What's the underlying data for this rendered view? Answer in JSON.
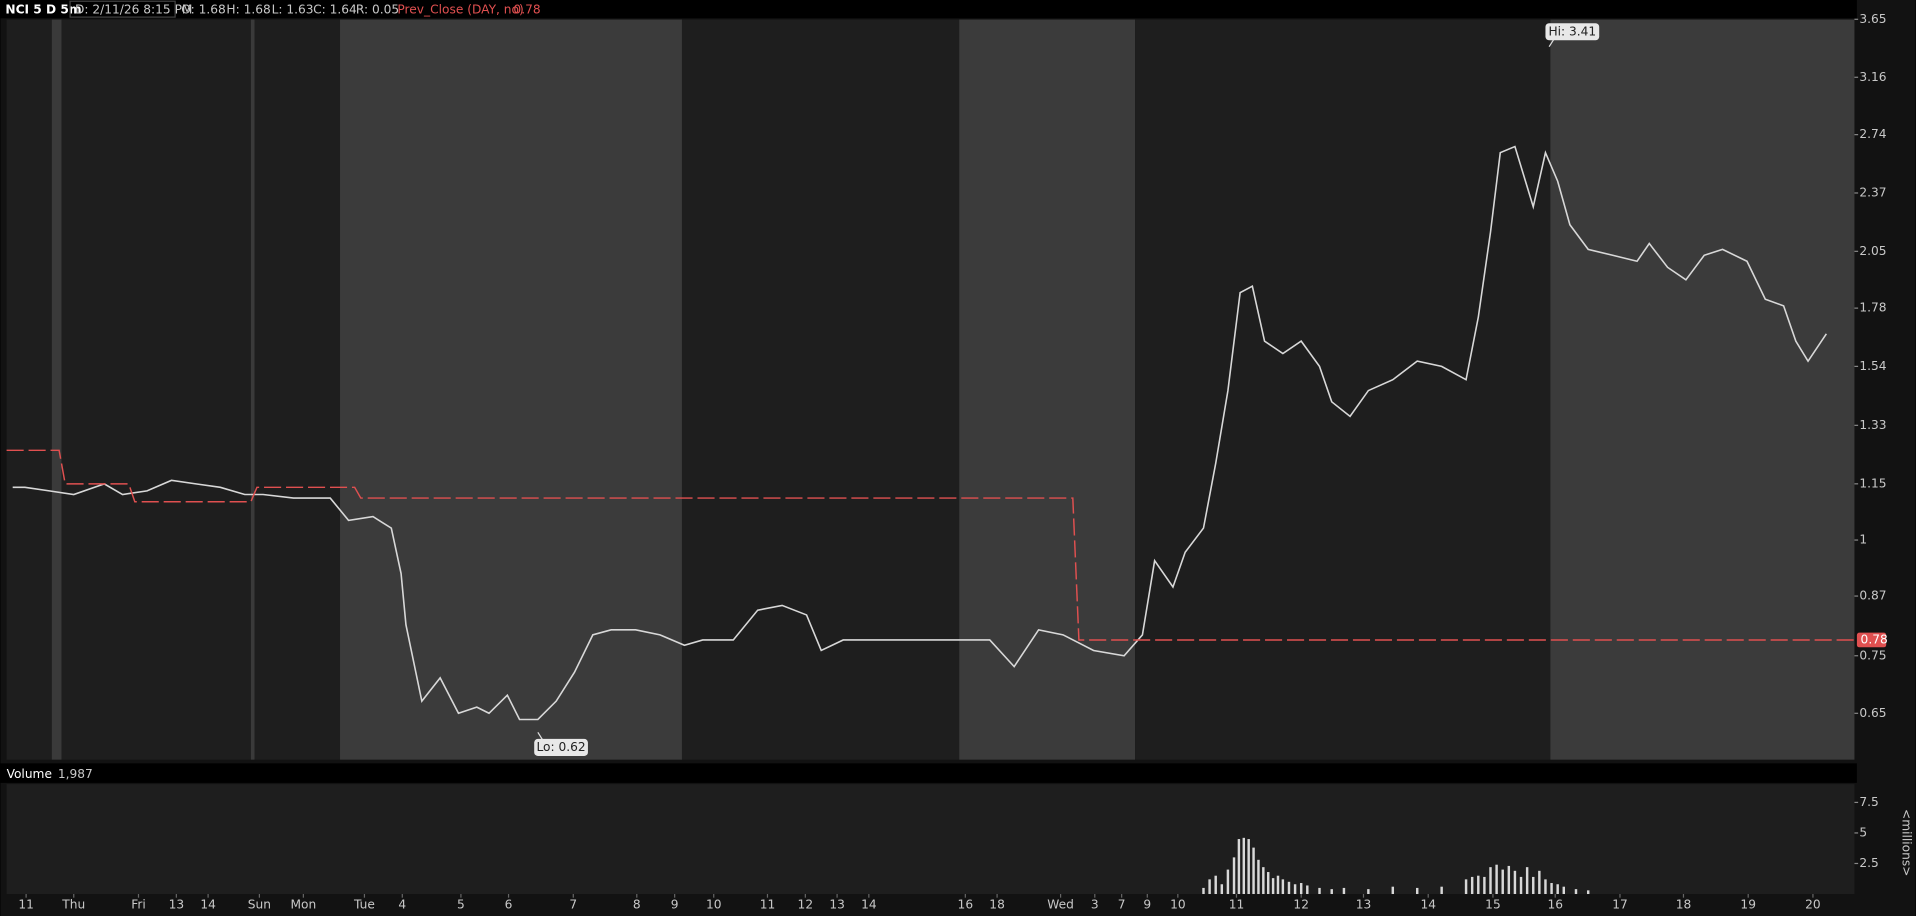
{
  "header": {
    "symbol": "NCI 5 D 5m",
    "date": "D: 2/11/26 8:15 PM",
    "open": "O: 1.68",
    "high": "H: 1.68",
    "low": "L: 1.63",
    "close": "C: 1.64",
    "range": "R: 0.05",
    "study": "Prev_Close (DAY, no)"
  },
  "chart_data": [
    {
      "type": "line",
      "log_scale": true,
      "ylim": [
        0.581,
        3.67
      ],
      "xlim": [
        0,
        1513
      ],
      "yticks": [
        0.65,
        0.75,
        0.87,
        1,
        1.15,
        1.33,
        1.54,
        1.78,
        2.05,
        2.37,
        2.74,
        3.16,
        3.65
      ],
      "xticks": [
        {
          "value": 16,
          "label": "11"
        },
        {
          "value": 55,
          "label": "Thu"
        },
        {
          "value": 108,
          "label": "Fri"
        },
        {
          "value": 139,
          "label": "13"
        },
        {
          "value": 165,
          "label": "14"
        },
        {
          "value": 207,
          "label": "Sun"
        },
        {
          "value": 243,
          "label": "Mon"
        },
        {
          "value": 293,
          "label": "Tue"
        },
        {
          "value": 324,
          "label": "4"
        },
        {
          "value": 372,
          "label": "5"
        },
        {
          "value": 411,
          "label": "6"
        },
        {
          "value": 464,
          "label": "7"
        },
        {
          "value": 516,
          "label": "8"
        },
        {
          "value": 547,
          "label": "9"
        },
        {
          "value": 579,
          "label": "10"
        },
        {
          "value": 623,
          "label": "11"
        },
        {
          "value": 654,
          "label": "12"
        },
        {
          "value": 680,
          "label": "13"
        },
        {
          "value": 706,
          "label": "14"
        },
        {
          "value": 785,
          "label": "16"
        },
        {
          "value": 811,
          "label": "18"
        },
        {
          "value": 863,
          "label": "Wed"
        },
        {
          "value": 891,
          "label": "3"
        },
        {
          "value": 913,
          "label": "7"
        },
        {
          "value": 934,
          "label": "9"
        },
        {
          "value": 959,
          "label": "10"
        },
        {
          "value": 1007,
          "label": "11"
        },
        {
          "value": 1060,
          "label": "12"
        },
        {
          "value": 1111,
          "label": "13"
        },
        {
          "value": 1164,
          "label": "14"
        },
        {
          "value": 1217,
          "label": "15"
        },
        {
          "value": 1268,
          "label": "16"
        },
        {
          "value": 1321,
          "label": "17"
        },
        {
          "value": 1373,
          "label": "18"
        },
        {
          "value": 1426,
          "label": "19"
        },
        {
          "value": 1479,
          "label": "20"
        }
      ],
      "series": [
        {
          "name": "NCI",
          "color": "#d8d8d8",
          "x": [
            5,
            15,
            35,
            55,
            80,
            95,
            115,
            135,
            155,
            175,
            195,
            210,
            235,
            265,
            280,
            300,
            315,
            323,
            327,
            340,
            355,
            370,
            385,
            395,
            410,
            420,
            435,
            450,
            465,
            480,
            495,
            515,
            535,
            555,
            570,
            595,
            615,
            635,
            655,
            667,
            685,
            715,
            755,
            785,
            805,
            825,
            845,
            865,
            890,
            915,
            930,
            940,
            955,
            965,
            980,
            990,
            1000,
            1010,
            1020,
            1030,
            1045,
            1060,
            1075,
            1085,
            1100,
            1115,
            1135,
            1155,
            1175,
            1195,
            1205,
            1215,
            1223,
            1235,
            1250,
            1260,
            1270,
            1280,
            1295,
            1315,
            1335,
            1345,
            1360,
            1375,
            1390,
            1405,
            1425,
            1440,
            1455,
            1465,
            1475,
            1490
          ],
          "values": [
            1.14,
            1.14,
            1.13,
            1.12,
            1.15,
            1.12,
            1.13,
            1.16,
            1.15,
            1.14,
            1.12,
            1.12,
            1.11,
            1.11,
            1.05,
            1.06,
            1.03,
            0.92,
            0.81,
            0.67,
            0.71,
            0.65,
            0.66,
            0.65,
            0.68,
            0.64,
            0.64,
            0.67,
            0.72,
            0.79,
            0.8,
            0.8,
            0.79,
            0.77,
            0.78,
            0.78,
            0.84,
            0.85,
            0.83,
            0.76,
            0.78,
            0.78,
            0.78,
            0.78,
            0.78,
            0.73,
            0.8,
            0.79,
            0.76,
            0.75,
            0.79,
            0.95,
            0.89,
            0.97,
            1.03,
            1.21,
            1.45,
            1.85,
            1.88,
            1.64,
            1.59,
            1.64,
            1.54,
            1.41,
            1.36,
            1.45,
            1.49,
            1.56,
            1.54,
            1.49,
            1.74,
            2.15,
            2.62,
            2.66,
            2.29,
            2.62,
            2.44,
            2.19,
            2.06,
            2.03,
            2,
            2.09,
            1.97,
            1.91,
            2.03,
            2.06,
            2,
            1.82,
            1.79,
            1.64,
            1.56,
            1.67
          ]
        },
        {
          "name": "Prev_Close",
          "color": "#e05050",
          "dashed": true,
          "x": [
            0,
            43,
            48,
            100,
            105,
            200,
            205,
            285,
            290,
            873,
            878,
            1513
          ],
          "values": [
            1.25,
            1.25,
            1.15,
            1.15,
            1.1,
            1.1,
            1.14,
            1.14,
            1.11,
            1.11,
            0.78,
            0.78
          ]
        }
      ],
      "annotations": [
        {
          "label": "Hi: 3.41",
          "x": 1263,
          "value": 3.41
        },
        {
          "label": "Lo: 0.62",
          "x": 435,
          "value": 0.62
        }
      ]
    },
    {
      "type": "bar",
      "title": "Volume",
      "subtitle": "1,987",
      "ylabel": "<millions>",
      "color": "#d8d8d8",
      "xlim": [
        0,
        1513
      ],
      "ylim": [
        0,
        8.5
      ],
      "yticks": [
        2.5,
        5,
        7.5
      ],
      "x": [
        980,
        985,
        990,
        995,
        1000,
        1005,
        1009,
        1013,
        1017,
        1021,
        1025,
        1029,
        1033,
        1037,
        1041,
        1045,
        1050,
        1055,
        1060,
        1065,
        1075,
        1085,
        1095,
        1115,
        1135,
        1155,
        1175,
        1195,
        1200,
        1205,
        1210,
        1215,
        1220,
        1225,
        1230,
        1235,
        1240,
        1245,
        1250,
        1255,
        1260,
        1265,
        1270,
        1275,
        1285,
        1295
      ],
      "values": [
        0.5,
        1.2,
        1.5,
        0.8,
        2,
        3,
        4.5,
        4.6,
        4.5,
        3.8,
        2.8,
        2.2,
        1.8,
        1.3,
        1.5,
        1.2,
        1,
        0.8,
        0.9,
        0.7,
        0.5,
        0.4,
        0.5,
        0.4,
        0.6,
        0.5,
        0.6,
        1.2,
        1.4,
        1.5,
        1.4,
        2.2,
        2.4,
        2,
        2.3,
        1.9,
        1.4,
        2.2,
        1.4,
        1.9,
        1.2,
        0.9,
        0.8,
        0.6,
        0.4,
        0.3
      ]
    }
  ]
}
